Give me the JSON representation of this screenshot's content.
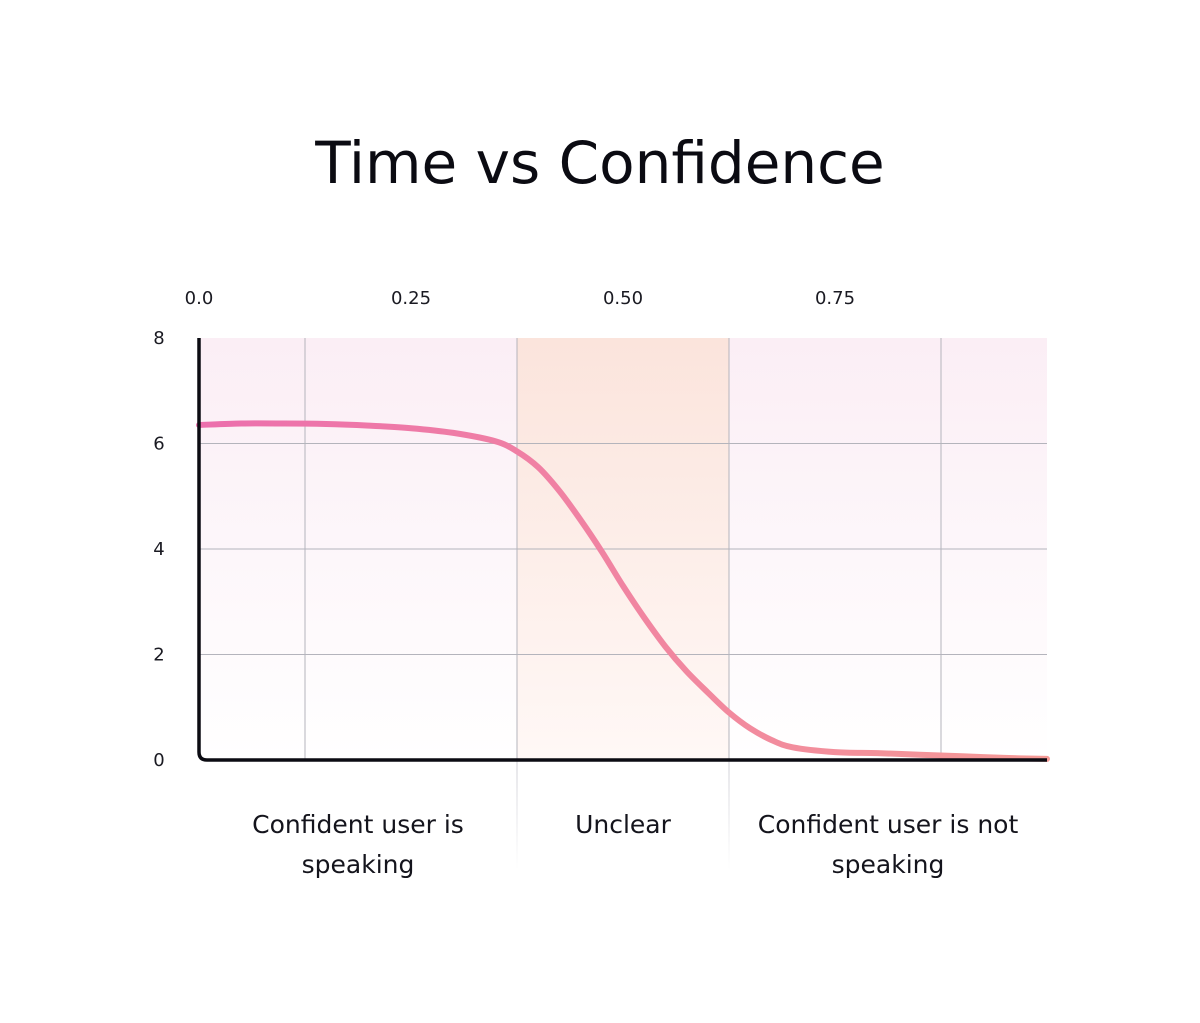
{
  "chart_data": {
    "type": "line",
    "title": "Time vs Confidence",
    "xlabel": "",
    "ylabel": "",
    "x_ticks": [
      "0.0",
      "0.25",
      "0.50",
      "0.75",
      ""
    ],
    "y_ticks": [
      "8",
      "6",
      "4",
      "2",
      "0"
    ],
    "xlim": [
      0,
      1
    ],
    "ylim": [
      0,
      8
    ],
    "grid": true,
    "regions": [
      {
        "label_lines": [
          "Confident user is",
          "speaking"
        ],
        "x_start": 0,
        "x_end": 0.375
      },
      {
        "label_lines": [
          "Unclear"
        ],
        "x_start": 0.375,
        "x_end": 0.625
      },
      {
        "label_lines": [
          "Confident user is not",
          "speaking"
        ],
        "x_start": 0.625,
        "x_end": 1.0
      }
    ],
    "series": [
      {
        "x": [
          0,
          0.05,
          0.1,
          0.15,
          0.2,
          0.25,
          0.3,
          0.35,
          0.375,
          0.4,
          0.425,
          0.45,
          0.475,
          0.5,
          0.525,
          0.55,
          0.575,
          0.6,
          0.625,
          0.65,
          0.675,
          0.7,
          0.75,
          0.8,
          0.85,
          0.9,
          0.95,
          1.0
        ],
        "y": [
          6.35,
          6.38,
          6.38,
          6.37,
          6.34,
          6.29,
          6.2,
          6.04,
          5.85,
          5.55,
          5.1,
          4.55,
          3.95,
          3.3,
          2.7,
          2.15,
          1.68,
          1.28,
          0.9,
          0.6,
          0.38,
          0.24,
          0.15,
          0.13,
          0.1,
          0.07,
          0.04,
          0.02
        ],
        "color_start": "#ec6fad",
        "color_end": "#f59a96"
      }
    ],
    "colors": {
      "line_start": "#ec6fad",
      "line_end": "#f59a96",
      "axis": "#0b0b12",
      "grid": "#b4b4bc",
      "band_outer": "#fbeef5",
      "band_middle": "#fbe6df"
    }
  }
}
